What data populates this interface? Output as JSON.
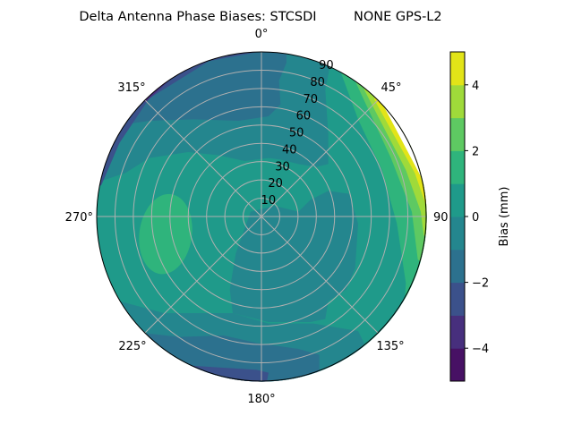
{
  "chart_data": {
    "type": "heatmap",
    "projection": "polar",
    "title": "Delta Antenna Phase Biases: STCSDI         NONE GPS-L2",
    "angular_ticks": [
      "0°",
      "45°",
      "90",
      "135°",
      "180°",
      "225°",
      "270°",
      "315°"
    ],
    "radial_ticks": [
      "10",
      "20",
      "30",
      "40",
      "50",
      "60",
      "70",
      "80",
      "90"
    ],
    "radial_range": [
      0,
      90
    ],
    "theta_direction": "clockwise",
    "theta_zero": "top",
    "grid": true,
    "colormap": "viridis",
    "colorbar": {
      "label": "Bias (mm)",
      "levels": [
        -5,
        -4,
        -3,
        -2,
        -1,
        0,
        1,
        2,
        3,
        4,
        5
      ],
      "tick_labels": [
        "−4",
        "−2",
        "0",
        "2",
        "4"
      ],
      "tick_values": [
        -4,
        -2,
        0,
        2,
        4
      ],
      "colors": [
        "#471164",
        "#472f7d",
        "#3b518b",
        "#2c718e",
        "#24868e",
        "#1f9a8a",
        "#2fb47c",
        "#5ec962",
        "#9fda3a",
        "#e2e418"
      ]
    },
    "regions": [
      {
        "description_level": "0 to 1 mm",
        "area": "background / center-left"
      },
      {
        "description_level": "-2 to -1 mm",
        "area": "upper-left and bottom"
      },
      {
        "description_level": "-1 to 0 mm",
        "area": "center-right and upper band"
      },
      {
        "description_level": "1 to 2 mm",
        "area": "west blob at ~270° / 40-70°"
      },
      {
        "description_level": "2 to 5 mm",
        "area": "east/north-east edge, elevation 70-90°"
      },
      {
        "description_level": "-4 to -2 mm",
        "area": "north-west edge"
      }
    ]
  }
}
